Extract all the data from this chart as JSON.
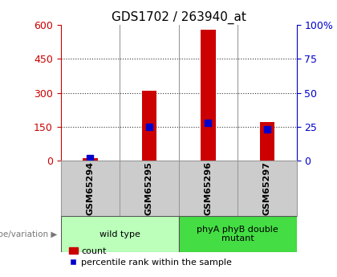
{
  "title": "GDS1702 / 263940_at",
  "samples": [
    "GSM65294",
    "GSM65295",
    "GSM65296",
    "GSM65297"
  ],
  "counts": [
    10,
    310,
    580,
    170
  ],
  "percentile_ranks": [
    2,
    25,
    28,
    23
  ],
  "ylim_left": [
    0,
    600
  ],
  "ylim_right": [
    0,
    100
  ],
  "yticks_left": [
    0,
    150,
    300,
    450,
    600
  ],
  "yticks_right": [
    0,
    25,
    50,
    75,
    100
  ],
  "groups": [
    {
      "label": "wild type",
      "indices": [
        0,
        1
      ],
      "color": "#bbffbb"
    },
    {
      "label": "phyA phyB double\nmutant",
      "indices": [
        2,
        3
      ],
      "color": "#44dd44"
    }
  ],
  "bar_color": "#cc0000",
  "percentile_color": "#0000cc",
  "left_tick_color": "#cc0000",
  "right_tick_color": "#0000cc",
  "title_fontsize": 11,
  "legend_fontsize": 8,
  "sample_label_fontsize": 8,
  "group_label_fontsize": 8,
  "bar_width": 0.25,
  "percentile_marker_size": 6,
  "grid_color": "#000000",
  "background_color": "#ffffff",
  "sample_box_color": "#cccccc",
  "genotype_label": "genotype/variation",
  "legend_items": [
    {
      "label": "count",
      "color": "#cc0000",
      "marker": "s"
    },
    {
      "label": "percentile rank within the sample",
      "color": "#0000cc",
      "marker": "s"
    }
  ]
}
